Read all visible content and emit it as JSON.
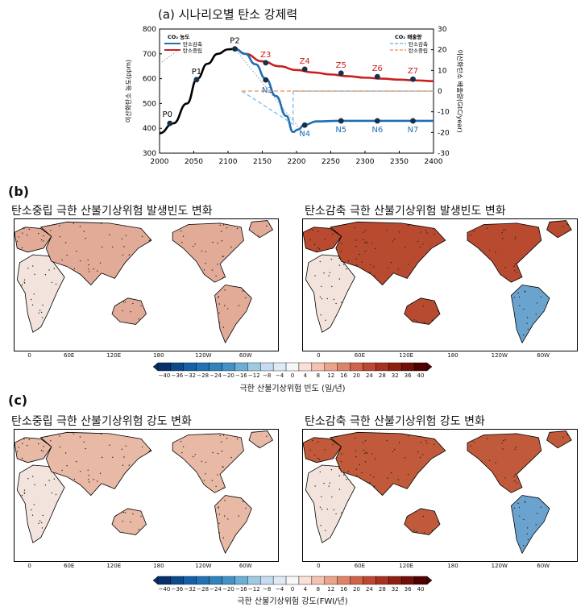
{
  "panel_a": {
    "title": "(a) 시나리오별 탄소 강제력",
    "chart_data": {
      "type": "line",
      "xlim": [
        2000,
        2400
      ],
      "x_ticks": [
        2000,
        2050,
        2100,
        2150,
        2200,
        2250,
        2300,
        2350,
        2400
      ],
      "ylim_left": [
        300,
        800
      ],
      "y_ticks_left": [
        300,
        400,
        500,
        600,
        700,
        800
      ],
      "ylabel_left": "이산화탄소 농도(ppm)",
      "ylim_right": [
        -30,
        30
      ],
      "y_ticks_right": [
        -30,
        -20,
        -10,
        0,
        10,
        20,
        30
      ],
      "ylabel_right": "이산화탄소 배출량(GtC/year)",
      "legend_conc_title": "CO₂ 농도",
      "legend_emis_title": "CO₂ 배출량",
      "series": [
        {
          "name": "탄소중립",
          "kind": "concentration",
          "color": "#c8201e",
          "x": [
            2110,
            2125,
            2150,
            2175,
            2200,
            2225,
            2250,
            2275,
            2300,
            2325,
            2350,
            2375,
            2400
          ],
          "y": [
            720,
            700,
            670,
            650,
            635,
            625,
            617,
            610,
            604,
            600,
            596,
            593,
            590
          ]
        },
        {
          "name": "탄소감축",
          "kind": "concentration",
          "color": "#1f6fb3",
          "x": [
            2110,
            2125,
            2140,
            2155,
            2170,
            2185,
            2195,
            2202,
            2212,
            2230,
            2260,
            2300,
            2350,
            2400
          ],
          "y": [
            720,
            700,
            658,
            600,
            530,
            450,
            385,
            395,
            415,
            428,
            430,
            430,
            430,
            430
          ]
        },
        {
          "name": "",
          "kind": "concentration-historical",
          "color": "#000000",
          "x": [
            2000,
            2020,
            2040,
            2055,
            2070,
            2085,
            2100,
            2110
          ],
          "y": [
            380,
            420,
            500,
            600,
            660,
            700,
            718,
            720
          ]
        },
        {
          "name": "탄소감축",
          "kind": "emission",
          "color": "#7fc0e8",
          "x": [
            2120,
            2195,
            2195,
            2400
          ],
          "y": [
            0,
            -16,
            0,
            0
          ]
        },
        {
          "name": "탄소중립",
          "kind": "emission",
          "color": "#f0a070",
          "x": [
            2120,
            2400
          ],
          "y": [
            0,
            0
          ]
        }
      ],
      "points": [
        {
          "label": "P0",
          "x": 2015,
          "y": 420
        },
        {
          "label": "P1",
          "x": 2054,
          "y": 596
        },
        {
          "label": "P2",
          "x": 2110,
          "y": 720
        },
        {
          "label": "Z3",
          "x": 2155,
          "y": 664
        },
        {
          "label": "Z4",
          "x": 2212,
          "y": 638
        },
        {
          "label": "Z5",
          "x": 2265,
          "y": 622
        },
        {
          "label": "Z6",
          "x": 2318,
          "y": 608
        },
        {
          "label": "Z7",
          "x": 2370,
          "y": 598
        },
        {
          "label": "N3",
          "x": 2155,
          "y": 595
        },
        {
          "label": "N4",
          "x": 2212,
          "y": 413
        },
        {
          "label": "N5",
          "x": 2265,
          "y": 430
        },
        {
          "label": "N6",
          "x": 2318,
          "y": 430
        },
        {
          "label": "N7",
          "x": 2370,
          "y": 430
        }
      ]
    }
  },
  "panel_b": {
    "letter": "(b)",
    "left_title": "탄소중립 극한 산불기상위험 발생빈도 변화",
    "right_title": "탄소감축 극한 산불기상위험 발생빈도 변화",
    "colorbar_label": "극한 산불기상위험 빈도 (일/년)"
  },
  "panel_c": {
    "letter": "(c)",
    "left_title": "탄소중립 극한 산불기상위험 강도 변화",
    "right_title": "탄소감축 극한 산불기상위험 강도 변화",
    "colorbar_label": "극한 산불기상위험 강도(FWI/년)"
  },
  "map_lon_labels": [
    "0",
    "60E",
    "120E",
    "180",
    "120W",
    "60W"
  ],
  "colorbar_ticks": [
    "−40",
    "−36",
    "−32",
    "−28",
    "−24",
    "−20",
    "−16",
    "−12",
    "−8",
    "−4",
    "0",
    "4",
    "8",
    "12",
    "16",
    "20",
    "24",
    "28",
    "32",
    "36",
    "40"
  ],
  "colorbar_colors": [
    "#08306b",
    "#0c4a8c",
    "#1460a8",
    "#2171b5",
    "#3182bd",
    "#4292c6",
    "#6baed6",
    "#9ecae1",
    "#c6dbef",
    "#deebf7",
    "#f7f7f7",
    "#fbe0d6",
    "#f4c2b0",
    "#eba38a",
    "#de8466",
    "#cf6449",
    "#bf4732",
    "#a8311f",
    "#8e2012",
    "#711009",
    "#500000"
  ]
}
